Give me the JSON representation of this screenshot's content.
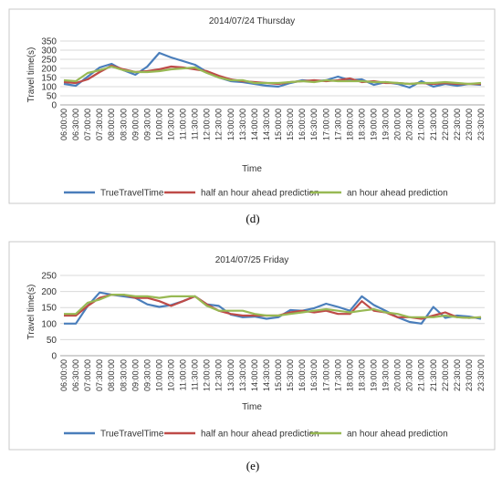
{
  "chart_data": [
    {
      "type": "line",
      "panel_label": "(d)",
      "title": "2014/07/24 Thursday",
      "xlabel": "Time",
      "ylabel": "Travel time(s)",
      "ylim": [
        0,
        350
      ],
      "yticks": [
        0,
        50,
        100,
        150,
        200,
        250,
        300,
        350
      ],
      "grid": "horizontal",
      "legend_position": "bottom",
      "categories": [
        "06:00:00",
        "06:30:00",
        "07:00:00",
        "07:30:00",
        "08:00:00",
        "08:30:00",
        "09:00:00",
        "09:30:00",
        "10:00:00",
        "10:30:00",
        "11:00:00",
        "11:30:00",
        "12:00:00",
        "12:30:00",
        "13:00:00",
        "13:30:00",
        "14:00:00",
        "14:30:00",
        "15:00:00",
        "15:30:00",
        "16:00:00",
        "16:30:00",
        "17:00:00",
        "17:30:00",
        "18:00:00",
        "18:30:00",
        "19:00:00",
        "19:30:00",
        "20:00:00",
        "20:30:00",
        "21:00:00",
        "21:30:00",
        "22:00:00",
        "22:30:00",
        "23:00:00",
        "23:30:00"
      ],
      "series": [
        {
          "name": "TrueTravelTime",
          "color": "#4a7ebb",
          "values": [
            115,
            105,
            155,
            205,
            225,
            190,
            165,
            210,
            285,
            260,
            240,
            220,
            180,
            150,
            130,
            125,
            115,
            105,
            100,
            120,
            135,
            130,
            135,
            155,
            135,
            140,
            110,
            125,
            115,
            95,
            130,
            100,
            115,
            105,
            115,
            110
          ]
        },
        {
          "name": "half an hour ahead prediction",
          "color": "#be4b48",
          "values": [
            125,
            120,
            140,
            180,
            215,
            195,
            180,
            185,
            195,
            210,
            205,
            195,
            185,
            160,
            140,
            130,
            125,
            120,
            115,
            125,
            130,
            135,
            130,
            135,
            145,
            125,
            130,
            120,
            120,
            115,
            120,
            115,
            120,
            115,
            115,
            115
          ]
        },
        {
          "name": "an hour ahead prediction",
          "color": "#98b954",
          "values": [
            135,
            130,
            175,
            190,
            210,
            190,
            180,
            180,
            185,
            195,
            200,
            205,
            175,
            150,
            135,
            135,
            120,
            120,
            120,
            125,
            130,
            125,
            135,
            130,
            130,
            130,
            125,
            125,
            120,
            115,
            120,
            120,
            125,
            120,
            115,
            120
          ]
        }
      ]
    },
    {
      "type": "line",
      "panel_label": "(e)",
      "title": "2014/07/25 Friday",
      "xlabel": "Time",
      "ylabel": "Travel time(s)",
      "ylim": [
        0,
        250
      ],
      "yticks": [
        0,
        50,
        100,
        150,
        200,
        250
      ],
      "grid": "horizontal",
      "legend_position": "bottom",
      "categories": [
        "06:00:00",
        "06:30:00",
        "07:00:00",
        "07:30:00",
        "08:00:00",
        "08:30:00",
        "09:00:00",
        "09:30:00",
        "10:00:00",
        "10:30:00",
        "11:00:00",
        "11:30:00",
        "12:00:00",
        "12:30:00",
        "13:00:00",
        "13:30:00",
        "14:00:00",
        "14:30:00",
        "15:00:00",
        "15:30:00",
        "16:00:00",
        "16:30:00",
        "17:00:00",
        "17:30:00",
        "18:00:00",
        "18:30:00",
        "19:00:00",
        "19:30:00",
        "20:00:00",
        "20:30:00",
        "21:00:00",
        "21:30:00",
        "22:00:00",
        "22:30:00",
        "23:00:00",
        "23:30:00"
      ],
      "series": [
        {
          "name": "TrueTravelTime",
          "color": "#4a7ebb",
          "values": [
            100,
            100,
            155,
            197,
            190,
            185,
            180,
            160,
            152,
            158,
            170,
            185,
            160,
            155,
            128,
            120,
            122,
            115,
            120,
            142,
            140,
            148,
            162,
            152,
            140,
            185,
            158,
            140,
            120,
            105,
            100,
            152,
            118,
            125,
            122,
            115
          ]
        },
        {
          "name": "half an hour ahead prediction",
          "color": "#be4b48",
          "values": [
            125,
            125,
            155,
            180,
            190,
            190,
            180,
            180,
            170,
            155,
            170,
            185,
            160,
            140,
            130,
            125,
            125,
            125,
            125,
            135,
            140,
            135,
            140,
            130,
            130,
            170,
            140,
            135,
            120,
            120,
            115,
            125,
            135,
            120,
            118,
            120
          ]
        },
        {
          "name": "an hour ahead prediction",
          "color": "#98b954",
          "values": [
            130,
            130,
            165,
            175,
            190,
            190,
            185,
            185,
            180,
            185,
            185,
            185,
            155,
            140,
            140,
            140,
            130,
            125,
            125,
            130,
            135,
            140,
            145,
            140,
            135,
            140,
            145,
            135,
            130,
            120,
            120,
            120,
            125,
            120,
            118,
            120
          ]
        }
      ]
    }
  ]
}
